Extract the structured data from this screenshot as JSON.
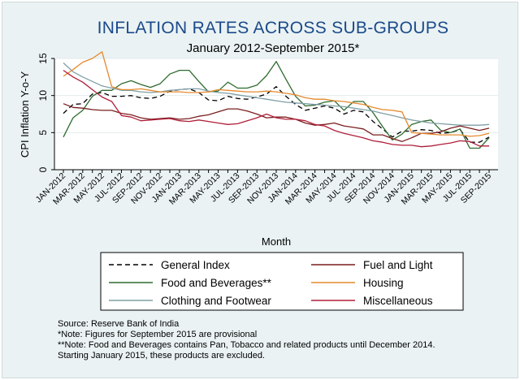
{
  "chart_data": {
    "type": "line",
    "title": "INFLATION RATES ACROSS SUB-GROUPS",
    "subtitle": "January 2012-September 2015*",
    "xlabel": "Month",
    "ylabel": "CPI Inflation Y-o-Y",
    "ylim": [
      0,
      15
    ],
    "yticks": [
      0,
      5,
      10,
      15
    ],
    "x": [
      "JAN-2012",
      "FEB-2012",
      "MAR-2012",
      "APR-2012",
      "MAY-2012",
      "JUN-2012",
      "JUL-2012",
      "AUG-2012",
      "SEP-2012",
      "OCT-2012",
      "NOV-2012",
      "DEC-2012",
      "JAN-2013",
      "FEB-2013",
      "MAR-2013",
      "APR-2013",
      "MAY-2013",
      "JUN-2013",
      "JUL-2013",
      "AUG-2013",
      "SEP-2013",
      "OCT-2013",
      "NOV-2013",
      "DEC-2013",
      "JAN-2014",
      "FEB-2014",
      "MAR-2014",
      "APR-2014",
      "MAY-2014",
      "JUN-2014",
      "JUL-2014",
      "AUG-2014",
      "SEP-2014",
      "OCT-2014",
      "NOV-2014",
      "DEC-2014",
      "JAN-2015",
      "FEB-2015",
      "MAR-2015",
      "APR-2015",
      "MAY-2015",
      "JUN-2015",
      "JUL-2015",
      "AUG-2015",
      "SEP-2015"
    ],
    "xtick_labels": [
      "JAN-2012",
      "MAR-2012",
      "MAY-2012",
      "JUL-2012",
      "SEP-2012",
      "NOV-2012",
      "JAN-2013",
      "MAR-2013",
      "MAY-2013",
      "JUL-2013",
      "SEP-2013",
      "NOV-2013",
      "JAN-2014",
      "MAR-2014",
      "MAY-2014",
      "JUL-2014",
      "SEP-2014",
      "NOV-2014",
      "JAN-2015",
      "MAR-2015",
      "MAY-2015",
      "JUL-2015",
      "SEP-2015"
    ],
    "grid": "horizontal",
    "legend_position": "bottom",
    "series": [
      {
        "name": "General Index",
        "color": "#000000",
        "dash": "6,4",
        "values": [
          7.6,
          8.8,
          8.9,
          10.2,
          10.4,
          9.9,
          9.9,
          10.0,
          9.7,
          9.6,
          9.9,
          10.6,
          10.8,
          10.9,
          10.4,
          9.4,
          9.3,
          9.9,
          9.6,
          9.5,
          9.8,
          10.2,
          11.2,
          9.9,
          8.8,
          8.0,
          8.3,
          8.6,
          8.3,
          7.5,
          8.0,
          7.8,
          6.5,
          5.5,
          4.4,
          5.2,
          5.2,
          5.4,
          5.3,
          4.9,
          5.0,
          5.4,
          3.7,
          3.7,
          4.4
        ]
      },
      {
        "name": "Food and Beverages**",
        "color": "#2f6b2f",
        "dash": "",
        "values": [
          4.4,
          7.0,
          8.0,
          9.9,
          10.7,
          10.7,
          11.6,
          12.0,
          11.5,
          11.1,
          11.6,
          12.9,
          13.4,
          13.4,
          11.9,
          10.5,
          10.6,
          11.8,
          11.0,
          11.0,
          11.4,
          12.7,
          14.6,
          12.2,
          9.9,
          8.6,
          8.7,
          9.1,
          9.3,
          8.0,
          9.2,
          9.2,
          7.7,
          5.8,
          4.0,
          4.8,
          6.1,
          6.5,
          6.7,
          5.3,
          5.0,
          5.5,
          2.9,
          2.9,
          4.3
        ]
      },
      {
        "name": "Clothing and Footwear",
        "color": "#7f9fa6",
        "dash": "",
        "values": [
          14.4,
          13.2,
          12.5,
          11.9,
          11.3,
          11.0,
          10.7,
          10.7,
          10.5,
          10.4,
          10.5,
          10.7,
          10.8,
          10.9,
          10.9,
          10.6,
          10.4,
          10.3,
          10.1,
          9.9,
          9.7,
          9.5,
          9.3,
          9.1,
          9.0,
          8.9,
          8.8,
          8.7,
          8.6,
          8.5,
          8.3,
          8.1,
          7.9,
          7.6,
          7.3,
          7.0,
          6.7,
          6.5,
          6.3,
          6.2,
          6.1,
          6.0,
          6.0,
          6.0,
          6.1
        ]
      },
      {
        "name": "Fuel and Light",
        "color": "#7a1f1f",
        "dash": "",
        "values": [
          8.9,
          8.4,
          8.3,
          8.1,
          8.0,
          8.0,
          7.6,
          7.4,
          7.0,
          6.8,
          6.9,
          7.0,
          6.8,
          6.9,
          7.2,
          7.4,
          7.8,
          8.2,
          8.2,
          7.9,
          7.5,
          7.0,
          7.1,
          7.1,
          6.8,
          6.3,
          6.0,
          6.1,
          6.3,
          5.9,
          5.7,
          5.5,
          4.7,
          4.7,
          4.2,
          3.8,
          4.3,
          4.9,
          4.9,
          5.1,
          5.6,
          5.9,
          5.6,
          5.3,
          5.6
        ]
      },
      {
        "name": "Housing",
        "color": "#e68a2e",
        "dash": "",
        "values": [
          12.6,
          13.5,
          14.5,
          15.0,
          15.9,
          11.2,
          10.8,
          10.8,
          10.9,
          10.7,
          10.5,
          10.5,
          10.5,
          10.4,
          10.4,
          10.5,
          10.8,
          10.7,
          10.6,
          10.5,
          10.5,
          10.6,
          10.5,
          10.3,
          10.1,
          9.7,
          9.5,
          9.5,
          9.3,
          9.2,
          9.0,
          8.8,
          8.4,
          8.1,
          8.0,
          7.8,
          5.0,
          4.9,
          4.8,
          4.7,
          4.7,
          4.7,
          4.5,
          4.6,
          4.9
        ]
      },
      {
        "name": "Miscellaneous",
        "color": "#b01e3a",
        "dash": "",
        "values": [
          13.4,
          12.5,
          11.8,
          10.8,
          9.8,
          9.2,
          7.3,
          7.1,
          6.6,
          6.7,
          6.8,
          6.9,
          6.6,
          6.5,
          6.7,
          6.5,
          6.3,
          6.1,
          6.2,
          6.6,
          7.0,
          7.5,
          7.0,
          6.8,
          6.8,
          6.6,
          6.1,
          5.9,
          5.3,
          4.9,
          4.6,
          4.3,
          3.9,
          3.7,
          3.4,
          3.3,
          3.3,
          3.1,
          3.2,
          3.4,
          3.6,
          3.9,
          3.8,
          3.2,
          3.2
        ]
      }
    ]
  },
  "notes": {
    "source": "Source: Reserve Bank of India",
    "note1": "*Note: Figures for September 2015 are provisional",
    "note2": "**Note: Food and Beverages contains Pan, Tobacco and related products until December 2014.",
    "note3": "Starting January 2015, these products are excluded."
  }
}
